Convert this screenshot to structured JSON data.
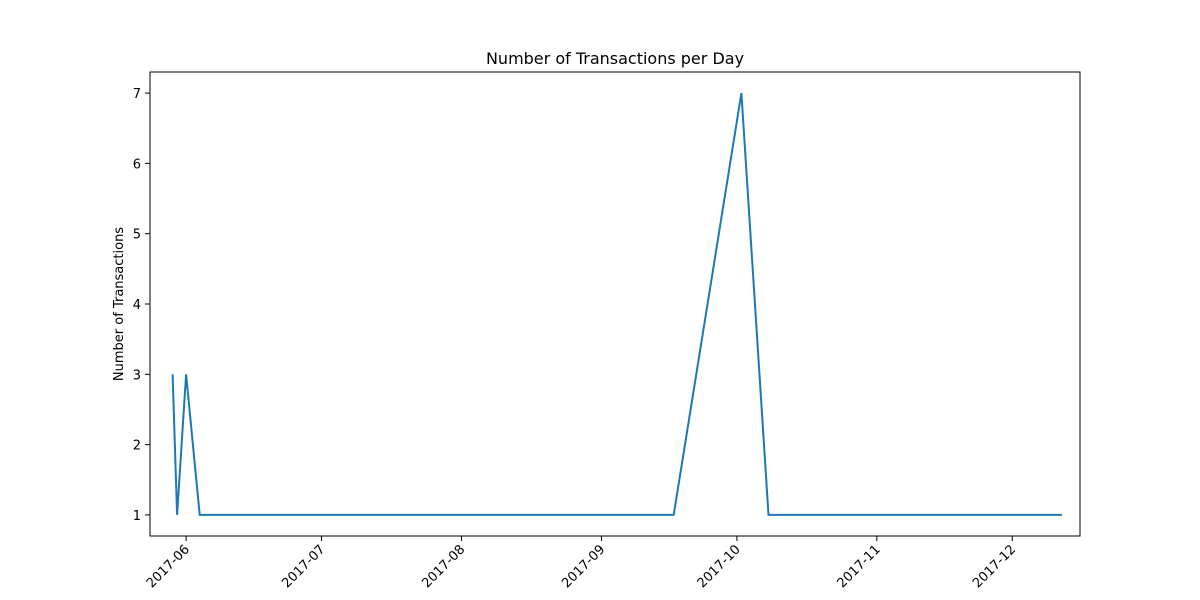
{
  "chart_data": {
    "type": "line",
    "title": "Number of Transactions per Day",
    "xlabel": "",
    "ylabel": "Number of Transactions",
    "x_ticks": [
      "2017-06",
      "2017-07",
      "2017-08",
      "2017-09",
      "2017-10",
      "2017-11",
      "2017-12"
    ],
    "y_ticks": [
      "1",
      "2",
      "3",
      "4",
      "5",
      "6",
      "7"
    ],
    "x_range": [
      "2017-05-24",
      "2017-12-16"
    ],
    "ylim": [
      0.7,
      7.3
    ],
    "grid": false,
    "legend": "none",
    "series": [
      {
        "color": "#1f77b4",
        "points": [
          {
            "x": "2017-05-29",
            "y": 3
          },
          {
            "x": "2017-05-30",
            "y": 1
          },
          {
            "x": "2017-06-01",
            "y": 3
          },
          {
            "x": "2017-06-04",
            "y": 1
          },
          {
            "x": "2017-09-17",
            "y": 1
          },
          {
            "x": "2017-10-02",
            "y": 7
          },
          {
            "x": "2017-10-08",
            "y": 1
          },
          {
            "x": "2017-12-12",
            "y": 1
          }
        ]
      }
    ]
  }
}
